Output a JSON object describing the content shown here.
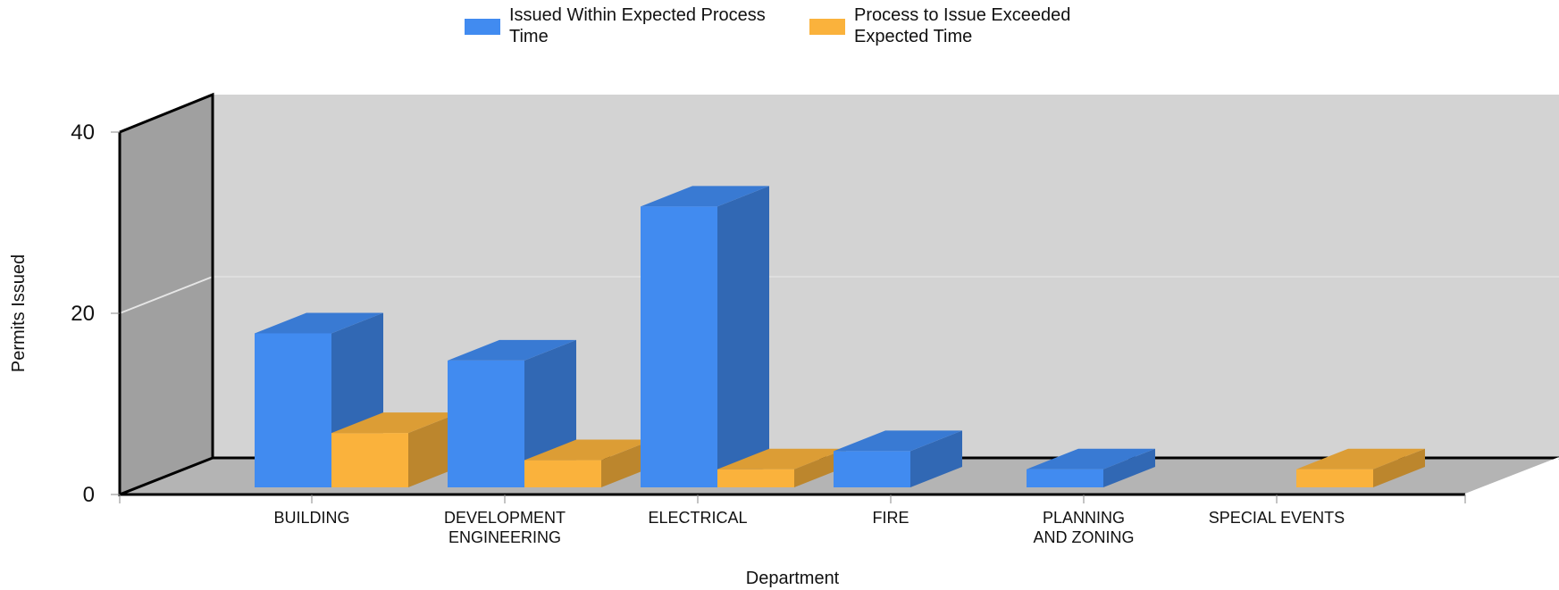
{
  "chart_data": {
    "type": "bar",
    "categories": [
      "BUILDING",
      "DEVELOPMENT ENGINEERING",
      "ELECTRICAL",
      "FIRE",
      "PLANNING AND ZONING",
      "SPECIAL EVENTS"
    ],
    "category_label_lines": [
      [
        "BUILDING"
      ],
      [
        "DEVELOPMENT",
        "ENGINEERING"
      ],
      [
        "ELECTRICAL"
      ],
      [
        "FIRE"
      ],
      [
        "PLANNING",
        "AND ZONING"
      ],
      [
        "SPECIAL EVENTS"
      ]
    ],
    "series": [
      {
        "name": "Issued Within Expected Process Time",
        "values": [
          17,
          14,
          31,
          4,
          2,
          0
        ],
        "color": "#418bf0"
      },
      {
        "name": "Process to Issue Exceeded Expected Time",
        "values": [
          6,
          3,
          2,
          0,
          0,
          2
        ],
        "color": "#fab23c"
      }
    ],
    "xlabel": "Department",
    "ylabel": "Permits Issued",
    "ylim": [
      0,
      40
    ],
    "yticks": [
      0,
      20,
      40
    ],
    "grid": true,
    "legend_position": "top",
    "style": "3d"
  }
}
